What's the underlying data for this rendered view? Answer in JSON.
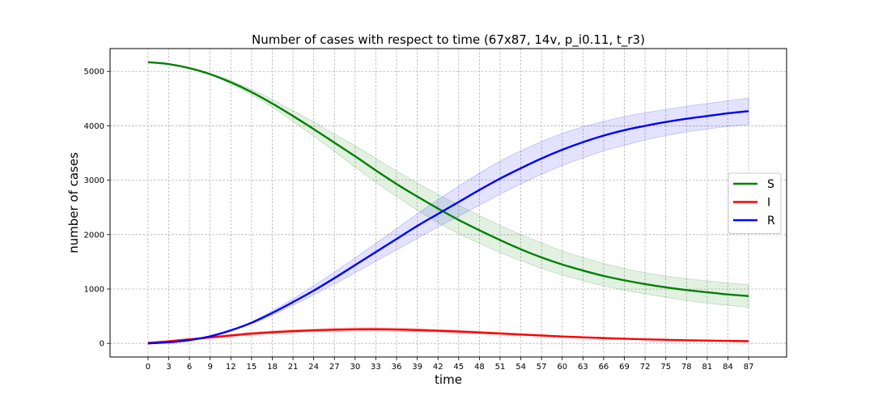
{
  "chart_data": {
    "type": "line",
    "title": "Number of cases with respect to time (67x87, 14v, p_i0.11, t_r3)",
    "xlabel": "time",
    "ylabel": "number of cases",
    "xlim": [
      -5.5,
      92.5
    ],
    "ylim": [
      -250,
      5420
    ],
    "x_ticks": [
      0,
      3,
      6,
      9,
      12,
      15,
      18,
      21,
      24,
      27,
      30,
      33,
      36,
      39,
      42,
      45,
      48,
      51,
      54,
      57,
      60,
      63,
      66,
      69,
      72,
      75,
      78,
      81,
      84,
      87
    ],
    "y_ticks": [
      0,
      1000,
      2000,
      3000,
      4000,
      5000
    ],
    "grid": true,
    "legend_position": "center-right",
    "x": [
      0,
      3,
      6,
      9,
      12,
      15,
      18,
      21,
      24,
      27,
      30,
      33,
      36,
      39,
      42,
      45,
      48,
      51,
      54,
      57,
      60,
      63,
      66,
      69,
      72,
      75,
      78,
      81,
      84,
      87
    ],
    "series": [
      {
        "name": "S",
        "color": "#008000",
        "band_color": "#008000",
        "values": [
          5170,
          5135,
          5060,
          4950,
          4800,
          4620,
          4410,
          4180,
          3940,
          3690,
          3440,
          3180,
          2930,
          2700,
          2480,
          2270,
          2080,
          1900,
          1730,
          1580,
          1450,
          1340,
          1240,
          1160,
          1090,
          1030,
          980,
          940,
          900,
          870
        ],
        "lower": [
          5170,
          5135,
          5060,
          4940,
          4770,
          4570,
          4340,
          4080,
          3810,
          3530,
          3240,
          2960,
          2700,
          2450,
          2220,
          2020,
          1840,
          1670,
          1520,
          1380,
          1260,
          1150,
          1060,
          980,
          910,
          850,
          790,
          740,
          700,
          660
        ],
        "upper": [
          5170,
          5135,
          5060,
          4960,
          4830,
          4670,
          4480,
          4280,
          4070,
          3850,
          3630,
          3400,
          3170,
          2950,
          2740,
          2540,
          2350,
          2170,
          2000,
          1850,
          1700,
          1580,
          1470,
          1380,
          1300,
          1240,
          1190,
          1150,
          1110,
          1080
        ]
      },
      {
        "name": "I",
        "color": "#ff0000",
        "band_color": "#ff0000",
        "values": [
          10,
          40,
          75,
          110,
          145,
          180,
          205,
          225,
          240,
          252,
          258,
          260,
          255,
          245,
          232,
          218,
          200,
          182,
          163,
          145,
          127,
          112,
          98,
          86,
          75,
          66,
          58,
          52,
          46,
          40
        ],
        "lower": [
          10,
          35,
          65,
          95,
          125,
          155,
          180,
          200,
          215,
          225,
          230,
          232,
          228,
          220,
          208,
          195,
          180,
          163,
          146,
          130,
          113,
          99,
          86,
          75,
          65,
          57,
          50,
          44,
          39,
          34
        ],
        "upper": [
          10,
          45,
          85,
          125,
          165,
          205,
          230,
          250,
          265,
          279,
          286,
          288,
          282,
          270,
          256,
          241,
          220,
          201,
          180,
          160,
          141,
          125,
          110,
          97,
          85,
          75,
          66,
          60,
          53,
          46
        ]
      },
      {
        "name": "R",
        "color": "#0000ff",
        "band_color": "#0000ff",
        "values": [
          0,
          20,
          60,
          130,
          240,
          380,
          560,
          760,
          970,
          1200,
          1440,
          1680,
          1920,
          2160,
          2380,
          2600,
          2820,
          3030,
          3220,
          3400,
          3560,
          3700,
          3820,
          3920,
          4000,
          4070,
          4130,
          4180,
          4230,
          4270
        ],
        "lower": [
          0,
          20,
          60,
          130,
          230,
          360,
          520,
          700,
          890,
          1090,
          1300,
          1510,
          1720,
          1930,
          2140,
          2340,
          2540,
          2740,
          2930,
          3110,
          3270,
          3410,
          3540,
          3640,
          3740,
          3820,
          3890,
          3940,
          3990,
          4020
        ],
        "upper": [
          0,
          20,
          60,
          130,
          250,
          400,
          600,
          820,
          1060,
          1310,
          1570,
          1840,
          2110,
          2380,
          2640,
          2890,
          3130,
          3350,
          3540,
          3710,
          3860,
          3980,
          4080,
          4170,
          4240,
          4300,
          4360,
          4410,
          4460,
          4510
        ]
      }
    ]
  }
}
